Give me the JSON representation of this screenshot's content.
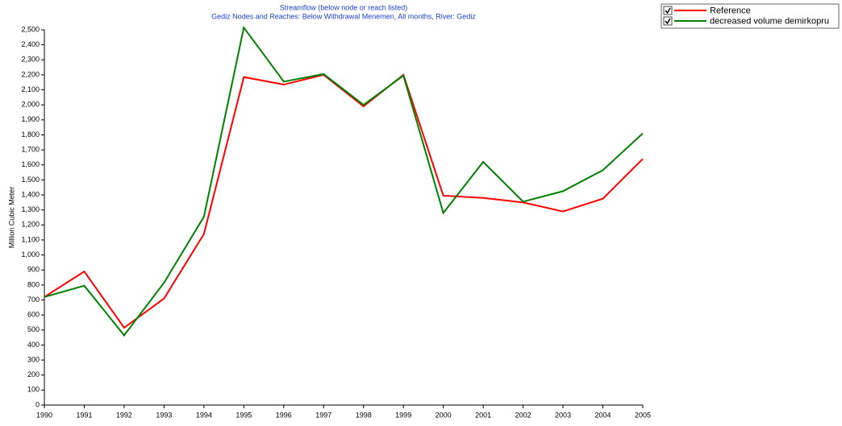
{
  "chart_data": {
    "type": "line",
    "title": "Streamflow (below node or reach listed)",
    "subtitle": "Gediz Nodes and Reaches: Below Withdrawal Menemen,  All months,  River: Gediz",
    "ylabel": "Million Cubic Meter",
    "x": [
      1990,
      1991,
      1992,
      1993,
      1994,
      1995,
      1996,
      1997,
      1998,
      1999,
      2000,
      2001,
      2002,
      2003,
      2004,
      2005
    ],
    "series": [
      {
        "name": "Reference",
        "color": "#ff0000",
        "values": [
          720,
          890,
          515,
          710,
          1140,
          2185,
          2135,
          2200,
          1990,
          2200,
          1395,
          1380,
          1350,
          1290,
          1375,
          1640
        ]
      },
      {
        "name": "decreased volume demirkopru",
        "color": "#008000",
        "values": [
          720,
          795,
          465,
          815,
          1255,
          2515,
          2155,
          2205,
          2000,
          2195,
          1280,
          1620,
          1355,
          1425,
          1565,
          1810
        ]
      }
    ],
    "xlim": [
      1990,
      2005
    ],
    "ylim": [
      0,
      2500
    ],
    "xticks": [
      1990,
      1991,
      1992,
      1993,
      1994,
      1995,
      1996,
      1997,
      1998,
      1999,
      2000,
      2001,
      2002,
      2003,
      2004,
      2005
    ],
    "yticks": [
      0,
      100,
      200,
      300,
      400,
      500,
      600,
      700,
      800,
      900,
      {
        "value": 1000,
        "label": "1,000"
      },
      {
        "value": 1100,
        "label": "1,100"
      },
      {
        "value": 1200,
        "label": "1,200"
      },
      {
        "value": 1300,
        "label": "1,300"
      },
      {
        "value": 1400,
        "label": "1,400"
      },
      {
        "value": 1500,
        "label": "1,500"
      },
      {
        "value": 1600,
        "label": "1,600"
      },
      {
        "value": 1700,
        "label": "1,700"
      },
      {
        "value": 1800,
        "label": "1,800"
      },
      {
        "value": 1900,
        "label": "1,900"
      },
      {
        "value": 2000,
        "label": "2,000"
      },
      {
        "value": 2100,
        "label": "2,100"
      },
      {
        "value": 2200,
        "label": "2,200"
      },
      {
        "value": 2300,
        "label": "2,300"
      },
      {
        "value": 2400,
        "label": "2,400"
      },
      {
        "value": 2500,
        "label": "2,500"
      }
    ]
  }
}
